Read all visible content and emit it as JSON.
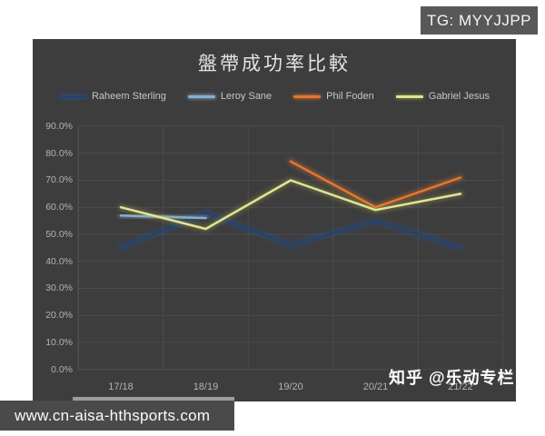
{
  "badge": {
    "text": "TG: MYYJJPP"
  },
  "watermark": {
    "text": "知乎 @乐动专栏"
  },
  "footer": {
    "url": "www.cn-aisa-hthsports.com"
  },
  "colors": {
    "panel_bg": "#3d3d3e",
    "grid": "#4c4c4e",
    "plot_edge": "#58585a",
    "tick_text": "#b3b3b3"
  },
  "chart_data": {
    "type": "line",
    "title": "盤帶成功率比較",
    "categories": [
      "17/18",
      "18/19",
      "19/20",
      "20/21",
      "21/22"
    ],
    "series": [
      {
        "name": "Raheem Sterling",
        "color": "#24436e",
        "glow": "#2f5597",
        "values": [
          45,
          58,
          46,
          55,
          45
        ]
      },
      {
        "name": "Leroy Sane",
        "color": "#85aed0",
        "glow": "#9dc3e6",
        "values": [
          57,
          56,
          null,
          null,
          null
        ]
      },
      {
        "name": "Phil Foden",
        "color": "#e6762e",
        "glow": "#ed7d31",
        "values": [
          null,
          null,
          77,
          60,
          71
        ]
      },
      {
        "name": "Gabriel Jesus",
        "color": "#dfe49b",
        "glow": "#a9a93a",
        "values": [
          60,
          52,
          70,
          59,
          65
        ]
      }
    ],
    "ylim": [
      0,
      90
    ],
    "ytick_step": 10,
    "ytick_labels": [
      "0.0%",
      "10.0%",
      "20.0%",
      "30.0%",
      "40.0%",
      "50.0%",
      "60.0%",
      "70.0%",
      "80.0%",
      "90.0%"
    ],
    "grid": true,
    "legend_position": "top",
    "ylabel": "",
    "xlabel": ""
  }
}
